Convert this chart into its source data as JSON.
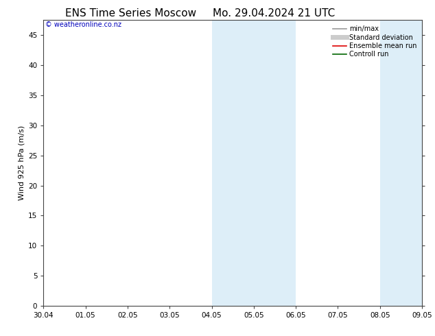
{
  "title_left": "ENS Time Series Moscow",
  "title_right": "Mo. 29.04.2024 21 UTC",
  "ylabel": "Wind 925 hPa (m/s)",
  "watermark": "© weatheronline.co.nz",
  "xlabels": [
    "30.04",
    "01.05",
    "02.05",
    "03.05",
    "04.05",
    "05.05",
    "06.05",
    "07.05",
    "08.05",
    "09.05"
  ],
  "ylim": [
    0,
    47.5
  ],
  "yticks": [
    0,
    5,
    10,
    15,
    20,
    25,
    30,
    35,
    40,
    45
  ],
  "background_color": "#ffffff",
  "shaded_bands": [
    {
      "xstart": 4.0,
      "xend": 6.0,
      "color": "#ddeef8"
    },
    {
      "xstart": 8.0,
      "xend": 9.0,
      "color": "#ddeef8"
    }
  ],
  "legend_entries": [
    {
      "label": "min/max",
      "color": "#999999",
      "lw": 1.2,
      "style": "solid"
    },
    {
      "label": "Standard deviation",
      "color": "#cccccc",
      "lw": 5,
      "style": "solid"
    },
    {
      "label": "Ensemble mean run",
      "color": "#dd0000",
      "lw": 1.2,
      "style": "solid"
    },
    {
      "label": "Controll run",
      "color": "#006600",
      "lw": 1.2,
      "style": "solid"
    }
  ],
  "title_fontsize": 11,
  "label_fontsize": 8,
  "tick_fontsize": 7.5,
  "watermark_color": "#0000bb",
  "spine_color": "#444444",
  "tick_color": "#444444"
}
